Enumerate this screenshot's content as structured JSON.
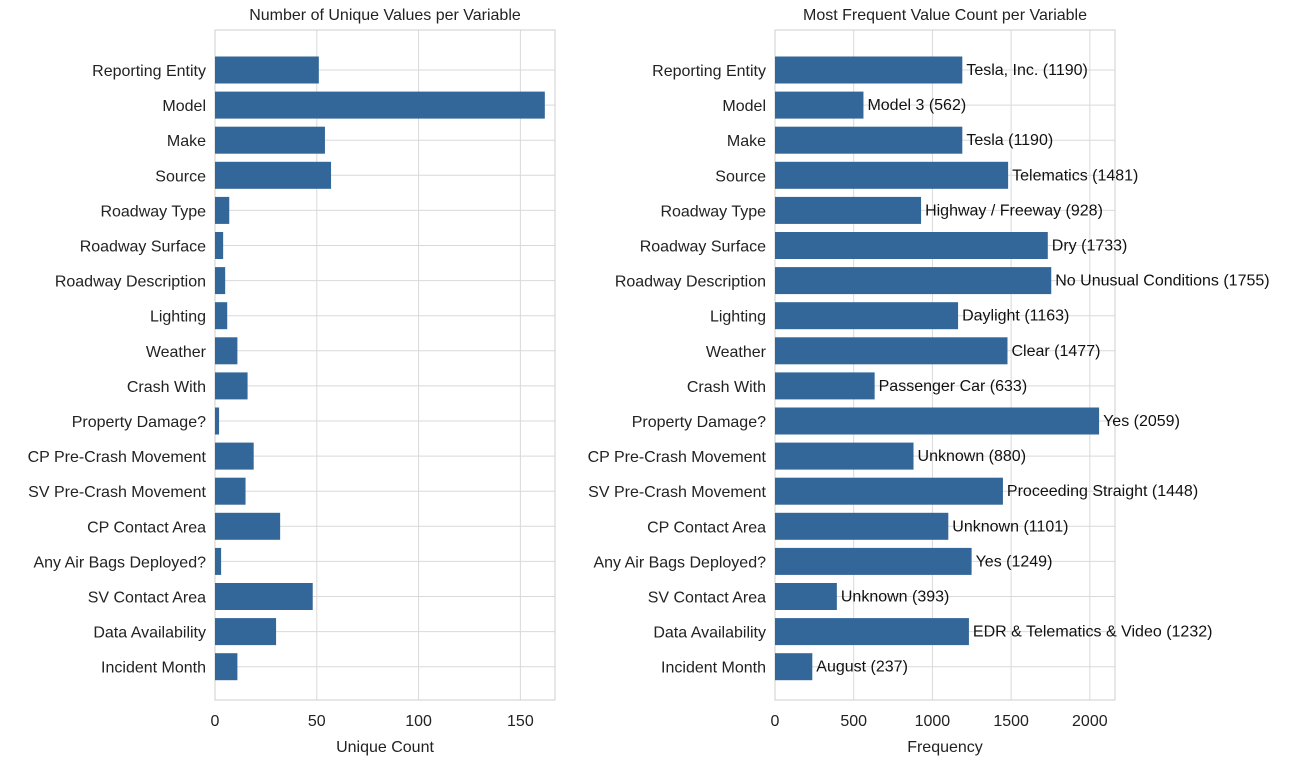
{
  "chart_data": [
    {
      "type": "bar",
      "orientation": "horizontal",
      "title": "Number of Unique Values per Variable",
      "xlabel": "Unique Count",
      "ylabel": "",
      "xlim": [
        0,
        167
      ],
      "xticks": [
        0,
        50,
        100,
        150
      ],
      "grid": true,
      "bar_color": "#336699",
      "categories": [
        "Reporting Entity",
        "Model",
        "Make",
        "Source",
        "Roadway Type",
        "Roadway Surface",
        "Roadway Description",
        "Lighting",
        "Weather",
        "Crash With",
        "Property Damage?",
        "CP Pre-Crash Movement",
        "SV Pre-Crash Movement",
        "CP Contact Area",
        "Any Air Bags Deployed?",
        "SV Contact Area",
        "Data Availability",
        "Incident Month"
      ],
      "values": [
        51,
        162,
        54,
        57,
        7,
        4,
        5,
        6,
        11,
        16,
        2,
        19,
        15,
        32,
        3,
        48,
        30,
        11
      ]
    },
    {
      "type": "bar",
      "orientation": "horizontal",
      "title": "Most Frequent Value Count per Variable",
      "xlabel": "Frequency",
      "ylabel": "",
      "xlim": [
        0,
        2160
      ],
      "xticks": [
        0,
        500,
        1000,
        1500,
        2000
      ],
      "grid": true,
      "bar_color": "#336699",
      "categories": [
        "Reporting Entity",
        "Model",
        "Make",
        "Source",
        "Roadway Type",
        "Roadway Surface",
        "Roadway Description",
        "Lighting",
        "Weather",
        "Crash With",
        "Property Damage?",
        "CP Pre-Crash Movement",
        "SV Pre-Crash Movement",
        "CP Contact Area",
        "Any Air Bags Deployed?",
        "SV Contact Area",
        "Data Availability",
        "Incident Month"
      ],
      "values": [
        1190,
        562,
        1190,
        1481,
        928,
        1733,
        1755,
        1163,
        1477,
        633,
        2059,
        880,
        1448,
        1101,
        1249,
        393,
        1232,
        237
      ],
      "data_labels": [
        "Tesla, Inc. (1190)",
        "Model 3 (562)",
        "Tesla (1190)",
        "Telematics (1481)",
        "Highway / Freeway (928)",
        "Dry (1733)",
        "No Unusual Conditions (1755)",
        "Daylight (1163)",
        "Clear (1477)",
        "Passenger Car (633)",
        "Yes (2059)",
        "Unknown (880)",
        "Proceeding Straight (1448)",
        "Unknown (1101)",
        "Yes (1249)",
        "Unknown (393)",
        "EDR & Telematics & Video (1232)",
        "August (237)"
      ]
    }
  ]
}
